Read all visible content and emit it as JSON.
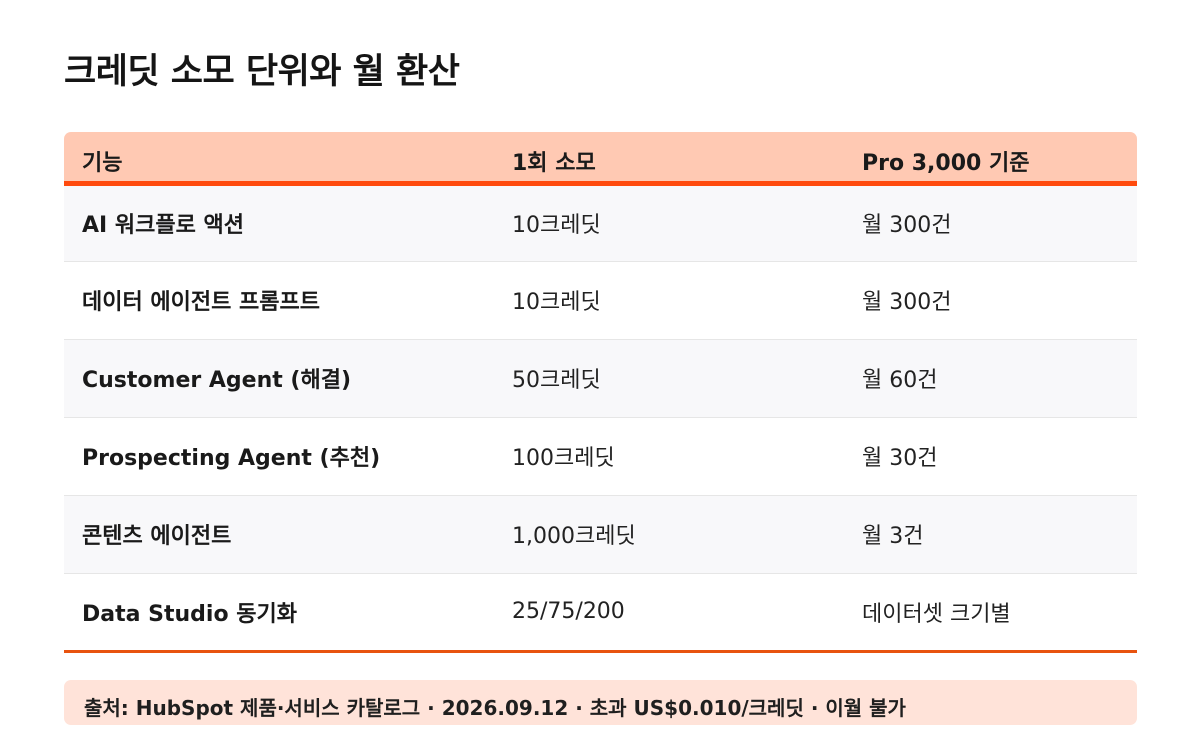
{
  "title": "크레딧 소모 단위와 월 환산",
  "table": {
    "headers": [
      "기능",
      "1회 소모",
      "Pro 3,000 기준"
    ],
    "rows": [
      {
        "feature": "AI 워크플로 액션",
        "cost": "10크레딧",
        "monthly": "월 300건"
      },
      {
        "feature": "데이터 에이전트 프롬프트",
        "cost": "10크레딧",
        "monthly": "월 300건"
      },
      {
        "feature": "Customer Agent (해결)",
        "cost": "50크레딧",
        "monthly": "월 60건"
      },
      {
        "feature": "Prospecting Agent (추천)",
        "cost": "100크레딧",
        "monthly": "월 30건"
      },
      {
        "feature": "콘텐츠 에이전트",
        "cost": "1,000크레딧",
        "monthly": "월 3건"
      },
      {
        "feature": "Data Studio 동기화",
        "cost": "25/75/200",
        "monthly": "데이터셋 크기별"
      }
    ]
  },
  "source_note": "출처: HubSpot 제품·서비스 카탈로그 · 2026.09.12 · 초과 US$0.010/크레딧 · 이월 불가",
  "colors": {
    "header_bg": "#ffc9b3",
    "accent": "#ff4a0d",
    "note_bg": "#ffe3d9"
  }
}
